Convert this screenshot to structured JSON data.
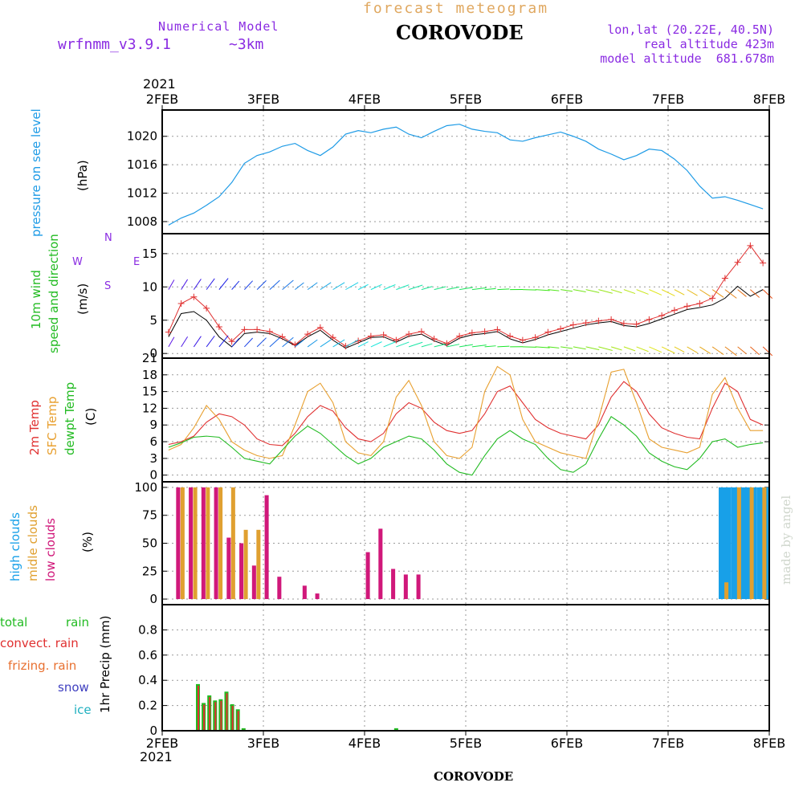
{
  "header": {
    "title": "forecast meteogram",
    "station": "COROVODE",
    "model_label": "Numerical Model",
    "model_name": "wrfnmm_v3.9.1",
    "model_res": "~3km",
    "lonlat": "lon,lat (20.22E, 40.5N)",
    "real_alt": "real altitude 423m",
    "model_alt": "model altitude  681.678m"
  },
  "footer_station": "COROVODE",
  "watermark": "made by angel",
  "colors": {
    "title": "#e0a860",
    "purple": "#8a2be2",
    "pressure": "#1e9be6",
    "wind_label": "#22bb22",
    "wind_speed_line": "#000000",
    "wind_gust": "#e03030",
    "temp_2m": "#e03030",
    "temp_sfc": "#e8a030",
    "temp_dew": "#22bb22",
    "cloud_high": "#18a0e8",
    "cloud_mid": "#e0a030",
    "cloud_low": "#d0187a",
    "rain_total": "#22bb22",
    "rain_conv": "#e03030",
    "rain_frz": "#e87030",
    "snow": "#4040c0",
    "ice": "#20b0c0"
  },
  "chart_data": [
    {
      "type": "line",
      "name": "pressure",
      "x_labels_top": [
        "2FEB",
        "3FEB",
        "4FEB",
        "5FEB",
        "6FEB",
        "7FEB",
        "8FEB"
      ],
      "year_label": "2021",
      "label": "pressure on see level",
      "ylabel": "(hPa)",
      "ylim": [
        1006.3,
        1023.7
      ],
      "yticks": [
        1008,
        1012,
        1016,
        1020
      ],
      "series": [
        {
          "values": [
            1007.5,
            1008.5,
            1009.2,
            1010.3,
            1011.5,
            1013.5,
            1016.2,
            1017.3,
            1017.8,
            1018.6,
            1019.0,
            1018.0,
            1017.3,
            1018.5,
            1020.3,
            1020.8,
            1020.5,
            1021.0,
            1021.3,
            1020.3,
            1019.8,
            1020.7,
            1021.5,
            1021.7,
            1021.0,
            1020.7,
            1020.5,
            1019.5,
            1019.3,
            1019.8,
            1020.2,
            1020.6,
            1020.0,
            1019.3,
            1018.2,
            1017.5,
            1016.7,
            1017.3,
            1018.2,
            1018.0,
            1016.8,
            1015.2,
            1013.0,
            1011.3,
            1011.5,
            1011.0,
            1010.4,
            1009.8
          ]
        }
      ]
    },
    {
      "type": "line",
      "name": "wind",
      "label": "10m wind speed and direction",
      "ylabel": "(m/s)",
      "compass": {
        "north": "N",
        "west": "W",
        "east": "E",
        "south": "S"
      },
      "ylim": [
        -0.7,
        18.0
      ],
      "yticks": [
        0,
        5,
        10,
        15
      ],
      "series": [
        {
          "name": "wind speed",
          "values": [
            2.5,
            6.0,
            6.3,
            5.0,
            2.5,
            1.0,
            3.0,
            3.2,
            3.0,
            2.2,
            1.2,
            2.5,
            3.5,
            2.0,
            0.8,
            1.6,
            2.4,
            2.5,
            1.7,
            2.6,
            2.9,
            1.9,
            1.2,
            2.3,
            2.8,
            3.0,
            3.3,
            2.2,
            1.6,
            2.1,
            2.8,
            3.3,
            3.8,
            4.3,
            4.6,
            4.8,
            4.2,
            4.0,
            4.5,
            5.2,
            5.9,
            6.6,
            6.9,
            7.3,
            8.3,
            10.1,
            8.6,
            9.6
          ]
        },
        {
          "name": "wind gust",
          "values": [
            3.2,
            7.5,
            8.5,
            6.8,
            4.0,
            1.8,
            3.6,
            3.6,
            3.3,
            2.5,
            1.3,
            2.9,
            3.9,
            2.4,
            1.1,
            1.9,
            2.6,
            2.8,
            2.0,
            2.9,
            3.3,
            2.2,
            1.5,
            2.6,
            3.1,
            3.3,
            3.6,
            2.6,
            2.0,
            2.4,
            3.2,
            3.7,
            4.3,
            4.6,
            4.9,
            5.1,
            4.5,
            4.4,
            5.1,
            5.7,
            6.5,
            7.1,
            7.5,
            8.3,
            11.3,
            13.7,
            16.2,
            13.6
          ]
        }
      ]
    },
    {
      "type": "line",
      "name": "temperature",
      "labels": {
        "t2m": "2m Temp",
        "tsfc": "SFC Temp",
        "tdew": "dewpt Temp"
      },
      "ylabel": "(C)",
      "ylim": [
        -1.2,
        21.0
      ],
      "yticks": [
        0,
        3,
        6,
        9,
        12,
        15,
        18,
        21
      ],
      "series": [
        {
          "name": "2m Temp",
          "values": [
            5.5,
            6.0,
            7.0,
            9.5,
            11.0,
            10.5,
            9.0,
            6.5,
            5.5,
            5.3,
            7.5,
            10.5,
            12.5,
            11.5,
            8.5,
            6.5,
            6.0,
            7.5,
            11.0,
            13.0,
            12.0,
            9.5,
            8.0,
            7.5,
            8.0,
            11.0,
            15.0,
            16.0,
            13.0,
            10.0,
            8.5,
            7.5,
            7.0,
            6.5,
            9.0,
            14.0,
            16.8,
            15.0,
            11.0,
            8.5,
            7.5,
            6.8,
            6.5,
            12.0,
            16.5,
            15.0,
            10.0,
            9.0
          ]
        },
        {
          "name": "SFC Temp",
          "values": [
            4.5,
            5.5,
            8.5,
            12.5,
            10.0,
            6.0,
            4.5,
            3.5,
            3.0,
            3.5,
            9.0,
            15.0,
            16.5,
            13.0,
            6.0,
            4.0,
            3.5,
            6.0,
            14.0,
            17.0,
            12.5,
            6.0,
            3.5,
            3.0,
            5.0,
            15.0,
            19.5,
            18.0,
            10.0,
            6.0,
            5.0,
            4.0,
            3.5,
            3.0,
            10.0,
            18.5,
            19.0,
            13.0,
            6.5,
            5.0,
            4.5,
            4.0,
            5.0,
            14.5,
            17.5,
            12.0,
            8.0,
            8.0
          ]
        },
        {
          "name": "dewpt Temp",
          "values": [
            5.0,
            5.8,
            6.8,
            7.0,
            6.8,
            5.0,
            3.0,
            2.5,
            2.0,
            4.5,
            7.0,
            8.8,
            7.5,
            5.5,
            3.5,
            2.0,
            3.0,
            5.0,
            6.0,
            7.0,
            6.5,
            4.5,
            2.0,
            0.5,
            0.0,
            3.5,
            6.5,
            8.0,
            6.5,
            5.5,
            3.0,
            1.0,
            0.5,
            2.0,
            6.5,
            10.5,
            9.0,
            7.0,
            4.0,
            2.5,
            1.5,
            1.0,
            3.0,
            6.0,
            6.5,
            5.0,
            5.5,
            5.8
          ]
        }
      ]
    },
    {
      "type": "bar",
      "name": "clouds",
      "labels": {
        "high": "high clouds",
        "mid": "midle clouds",
        "low": "low clouds"
      },
      "ylabel": "(%)",
      "ylim": [
        -5,
        105
      ],
      "yticks": [
        0,
        25,
        50,
        75,
        100
      ],
      "series": [
        {
          "name": "high clouds",
          "values": [
            0,
            0,
            0,
            0,
            0,
            0,
            0,
            0,
            0,
            0,
            0,
            0,
            0,
            0,
            0,
            0,
            0,
            0,
            0,
            0,
            0,
            0,
            0,
            0,
            0,
            0,
            0,
            0,
            0,
            0,
            0,
            0,
            0,
            0,
            0,
            0,
            0,
            0,
            0,
            0,
            0,
            0,
            0,
            0,
            100,
            100,
            100,
            100
          ]
        },
        {
          "name": "midle clouds",
          "values": [
            0,
            100,
            100,
            100,
            100,
            100,
            62,
            62,
            0,
            0,
            0,
            0,
            0,
            0,
            0,
            0,
            0,
            0,
            0,
            0,
            0,
            0,
            0,
            0,
            0,
            0,
            0,
            0,
            0,
            0,
            0,
            0,
            0,
            0,
            0,
            0,
            0,
            0,
            0,
            0,
            0,
            0,
            0,
            0,
            15,
            100,
            100,
            100
          ]
        },
        {
          "name": "low clouds",
          "values": [
            0,
            100,
            100,
            100,
            100,
            55,
            50,
            30,
            93,
            20,
            0,
            12,
            5,
            0,
            0,
            0,
            42,
            63,
            27,
            22,
            22,
            0,
            0,
            0,
            0,
            0,
            0,
            0,
            0,
            0,
            0,
            0,
            0,
            0,
            0,
            0,
            0,
            0,
            0,
            0,
            0,
            0,
            0,
            0,
            0,
            0,
            0,
            0
          ]
        }
      ]
    },
    {
      "type": "bar",
      "name": "precipitation",
      "labels": {
        "total": "total rain",
        "conv": "convect. rain",
        "frz": "frizing. rain",
        "snow": "snow",
        "ice": "ice"
      },
      "ylabel": "1hr Precip (mm)",
      "ylim": [
        0,
        1.0
      ],
      "yticks": [
        0,
        0.2,
        0.4,
        0.6,
        0.8
      ],
      "x_labels_bottom": [
        "2FEB",
        "3FEB",
        "4FEB",
        "5FEB",
        "6FEB",
        "7FEB",
        "8FEB"
      ],
      "year_label": "2021",
      "series": [
        {
          "name": "total rain",
          "values": [
            0,
            0,
            0,
            0,
            0,
            0,
            0,
            0,
            0,
            0,
            0,
            0,
            0,
            0,
            0,
            0,
            0,
            0,
            0.02,
            0,
            0,
            0,
            0,
            0,
            0,
            0,
            0,
            0,
            0,
            0,
            0,
            0,
            0,
            0,
            0,
            0,
            0,
            0,
            0,
            0,
            0,
            0,
            0,
            0,
            0,
            0,
            0,
            0
          ]
        },
        {
          "name": "convect. rain",
          "values": [
            0,
            0,
            0,
            0,
            0,
            0,
            0,
            0,
            0,
            0,
            0,
            0,
            0,
            0,
            0,
            0,
            0,
            0,
            0,
            0,
            0,
            0,
            0,
            0,
            0,
            0,
            0,
            0,
            0,
            0,
            0,
            0,
            0,
            0,
            0,
            0,
            0,
            0,
            0,
            0,
            0,
            0,
            0,
            0,
            0,
            0,
            0,
            0
          ]
        },
        {
          "name": "rain bars",
          "values": [
            0.37,
            0.22,
            0.28,
            0.24,
            0.25,
            0.31,
            0.21,
            0.17,
            0.02
          ]
        }
      ]
    }
  ]
}
